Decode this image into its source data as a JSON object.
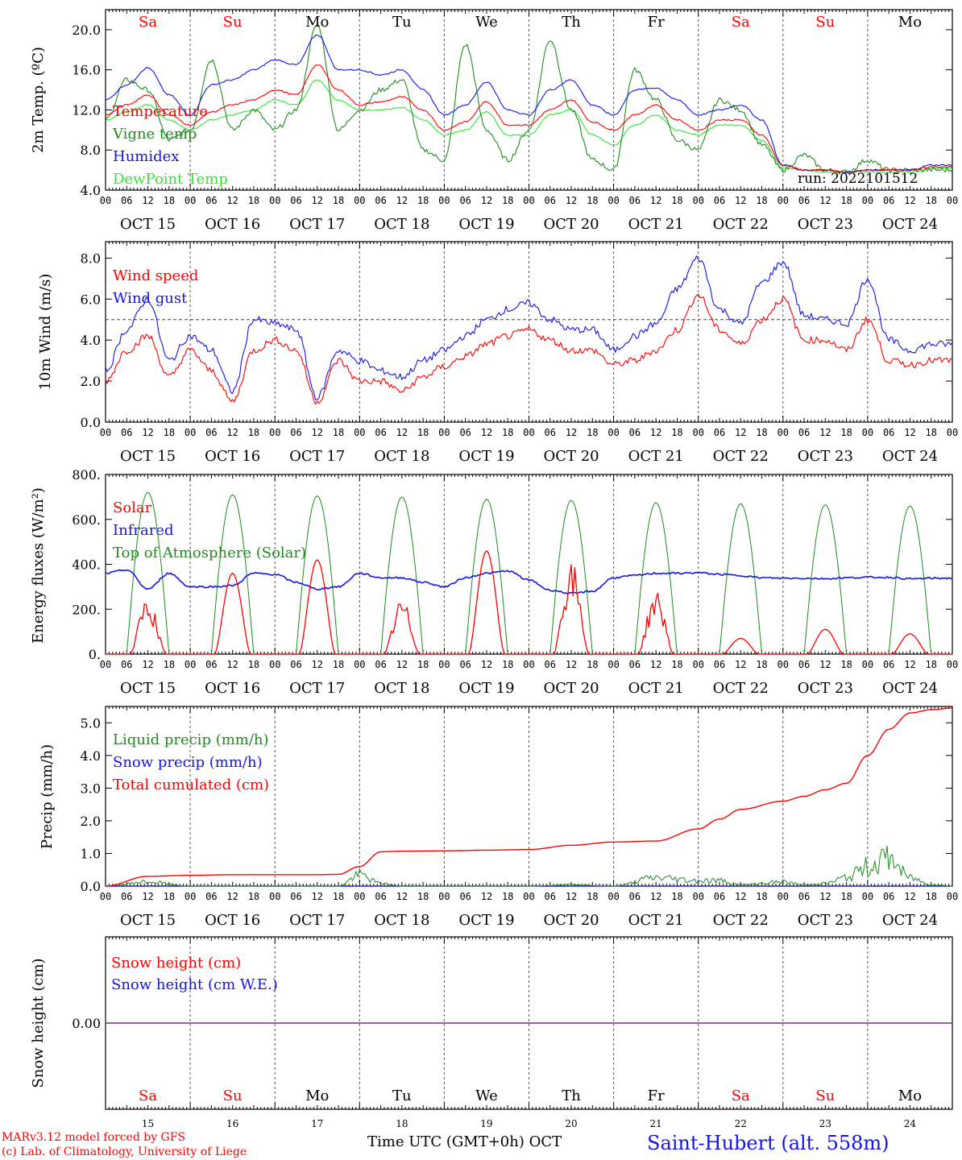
{
  "days": {
    "top_names": [
      "Sa",
      "Su",
      "Mo",
      "Tu",
      "We",
      "Th",
      "Fr",
      "Sa",
      "Su",
      "Mo"
    ],
    "name_colors": [
      "#ff0000",
      "#ff0000",
      "#000000",
      "#000000",
      "#000000",
      "#000000",
      "#000000",
      "#ff0000",
      "#ff0000",
      "#000000"
    ],
    "date_labels": [
      "OCT 15",
      "OCT 16",
      "OCT 17",
      "OCT 18",
      "OCT 19",
      "OCT 20",
      "OCT 21",
      "OCT 22",
      "OCT 23",
      "OCT 24"
    ],
    "hour_ticks": [
      "00",
      "06",
      "12",
      "18"
    ],
    "final_tick": "00",
    "day_numbers": [
      "15",
      "16",
      "17",
      "18",
      "19",
      "20",
      "21",
      "22",
      "23",
      "24"
    ]
  },
  "colors": {
    "red": "#ff0000",
    "green": "#1e8c1e",
    "blue": "#1414e6",
    "light_green": "#32e632",
    "purple": "#7a2a8a",
    "black": "#000000"
  },
  "footer": {
    "model_line1": "MARv3.12 model forced by GFS",
    "model_line2": "(c) Lab. of Climatology, University of Liege",
    "time_label": "Time UTC (GMT+0h) OCT",
    "station": "Saint-Hubert (alt. 558m)"
  },
  "chart_data": [
    {
      "type": "line",
      "ylabel": "2m Temp. (ºC)",
      "ylim": [
        4,
        22
      ],
      "yticks": [
        "4.0",
        "8.0",
        "12.0",
        "16.0",
        "20.0"
      ],
      "ytick_values": [
        4,
        8,
        12,
        16,
        20
      ],
      "annotation": "run: 2022101512",
      "x_hours": [
        0,
        6,
        12,
        18,
        24,
        30,
        36,
        42,
        48,
        54,
        60,
        66,
        72,
        78,
        84,
        90,
        96,
        102,
        108,
        114,
        120,
        126,
        132,
        138,
        144,
        150,
        156,
        162,
        168,
        174,
        180,
        186,
        192,
        198,
        204,
        210,
        216,
        222,
        228,
        234
      ],
      "series": [
        {
          "name": "Temperature",
          "color": "red",
          "values": [
            11.5,
            12.5,
            13.5,
            11.5,
            10.5,
            11.8,
            12.5,
            13.0,
            14.0,
            13.5,
            16.5,
            14.0,
            12.5,
            12.8,
            13.3,
            12.0,
            10.0,
            10.8,
            12.8,
            10.5,
            10.5,
            12.0,
            13.0,
            10.8,
            10.0,
            11.5,
            12.5,
            11.0,
            10.0,
            11.0,
            11.0,
            9.5,
            6.5,
            6.0,
            6.0,
            5.8,
            6.0,
            6.0,
            6.0,
            6.3
          ]
        },
        {
          "name": "Vigne temp",
          "color": "green",
          "values": [
            11.0,
            15.0,
            14.0,
            9.0,
            10.0,
            17.0,
            10.0,
            12.0,
            10.0,
            12.0,
            20.5,
            10.0,
            12.0,
            14.0,
            15.0,
            8.0,
            7.0,
            18.5,
            10.0,
            7.0,
            10.0,
            19.0,
            12.0,
            7.0,
            6.0,
            16.0,
            13.0,
            9.0,
            8.0,
            13.0,
            12.0,
            8.5,
            6.0,
            7.5,
            6.0,
            5.8,
            7.0,
            6.0,
            6.0,
            6.0
          ]
        },
        {
          "name": "Humidex",
          "color": "blue",
          "values": [
            13.0,
            14.5,
            16.2,
            13.5,
            11.5,
            14.5,
            15.0,
            16.0,
            17.0,
            16.5,
            19.5,
            16.0,
            16.0,
            15.5,
            16.0,
            14.0,
            11.5,
            12.5,
            14.8,
            12.0,
            11.5,
            14.0,
            15.0,
            12.5,
            11.5,
            14.0,
            14.2,
            13.0,
            11.5,
            12.0,
            12.5,
            11.0,
            6.5,
            6.0,
            6.0,
            5.8,
            6.0,
            6.0,
            6.0,
            6.5
          ]
        },
        {
          "name": "DewPoint Temp",
          "color": "light_green",
          "values": [
            11.0,
            11.8,
            12.5,
            11.0,
            10.0,
            11.0,
            11.5,
            12.0,
            13.0,
            12.5,
            15.0,
            13.0,
            12.0,
            12.0,
            12.2,
            11.0,
            9.5,
            10.0,
            11.8,
            9.5,
            9.5,
            11.5,
            12.0,
            9.5,
            8.5,
            10.5,
            11.5,
            10.0,
            9.5,
            10.5,
            10.5,
            9.0,
            6.2,
            6.0,
            5.8,
            5.8,
            5.8,
            5.8,
            5.8,
            6.2
          ]
        }
      ]
    },
    {
      "type": "line",
      "ylabel": "10m Wind (m/s)",
      "ylim": [
        0,
        8.8
      ],
      "yticks": [
        "0.0",
        "2.0",
        "4.0",
        "6.0",
        "8.0"
      ],
      "ytick_values": [
        0,
        2,
        4,
        6,
        8
      ],
      "reference_line": 5.0,
      "x_hours": [
        0,
        6,
        12,
        18,
        24,
        30,
        36,
        42,
        48,
        54,
        60,
        66,
        72,
        78,
        84,
        90,
        96,
        102,
        108,
        114,
        120,
        126,
        132,
        138,
        144,
        150,
        156,
        162,
        168,
        174,
        180,
        186,
        192,
        198,
        204,
        210,
        216,
        222,
        228,
        234
      ],
      "series": [
        {
          "name": "Wind speed",
          "color": "red",
          "values": [
            2.0,
            3.5,
            4.2,
            2.2,
            3.5,
            2.5,
            1.0,
            3.5,
            4.0,
            3.5,
            1.0,
            3.0,
            2.0,
            2.0,
            1.5,
            2.2,
            2.7,
            3.2,
            3.8,
            4.2,
            4.5,
            4.0,
            3.5,
            3.5,
            2.8,
            3.0,
            3.5,
            4.5,
            6.2,
            4.5,
            3.8,
            5.0,
            6.0,
            4.0,
            4.0,
            3.5,
            5.0,
            3.0,
            2.8,
            3.0
          ]
        },
        {
          "name": "Wind gust",
          "color": "blue",
          "values": [
            2.5,
            4.5,
            6.0,
            3.0,
            4.2,
            3.5,
            1.5,
            5.0,
            4.8,
            4.5,
            1.2,
            3.5,
            3.0,
            2.5,
            2.2,
            3.0,
            3.5,
            4.2,
            5.0,
            5.5,
            5.8,
            5.0,
            4.5,
            4.5,
            3.5,
            4.2,
            4.8,
            6.5,
            8.0,
            5.5,
            4.8,
            6.8,
            7.8,
            5.2,
            5.0,
            4.8,
            7.0,
            4.0,
            3.5,
            3.8
          ]
        }
      ]
    },
    {
      "type": "line",
      "ylabel": "Energy fluxes (W/m²)",
      "ylim": [
        0,
        800
      ],
      "yticks": [
        "0.",
        "200.",
        "400.",
        "600.",
        "800."
      ],
      "ytick_values": [
        0,
        200,
        400,
        600,
        800
      ],
      "toa_peaks": [
        720,
        710,
        705,
        700,
        690,
        685,
        675,
        670,
        665,
        660
      ],
      "solar_peaks": [
        260,
        360,
        420,
        250,
        460,
        420,
        290,
        70,
        110,
        90
      ],
      "infrared_values": [
        360,
        375,
        290,
        360,
        300,
        300,
        305,
        360,
        355,
        320,
        290,
        300,
        360,
        340,
        340,
        320,
        300,
        340,
        360,
        370,
        330,
        285,
        270,
        280,
        340,
        350,
        360,
        360,
        362,
        355,
        350,
        340,
        338,
        338,
        336,
        340,
        342,
        342,
        335,
        338
      ],
      "series": [
        {
          "name": "Solar",
          "color": "red"
        },
        {
          "name": "Infrared",
          "color": "blue"
        },
        {
          "name": "Top of Atmosphere (Solar)",
          "color": "green"
        }
      ]
    },
    {
      "type": "line",
      "ylabel": "Precip (mm/h)",
      "ylim": [
        0,
        5.5
      ],
      "yticks": [
        "0.0",
        "1.0",
        "2.0",
        "3.0",
        "4.0",
        "5.0"
      ],
      "ytick_values": [
        0,
        1,
        2,
        3,
        4,
        5
      ],
      "x_hours": [
        0,
        12,
        24,
        36,
        48,
        60,
        66,
        72,
        78,
        84,
        96,
        108,
        120,
        132,
        144,
        156,
        168,
        174,
        180,
        192,
        198,
        204,
        210,
        216,
        222,
        228,
        234,
        240
      ],
      "series": [
        {
          "name": "Liquid precip (mm/h)",
          "color": "green",
          "values": [
            0.0,
            0.15,
            0.0,
            0.0,
            0.0,
            0.0,
            0.0,
            0.4,
            0.1,
            0.0,
            0.0,
            0.0,
            0.0,
            0.05,
            0.0,
            0.3,
            0.2,
            0.2,
            0.05,
            0.15,
            0.05,
            0.1,
            0.3,
            0.7,
            1.0,
            0.3,
            0.05,
            0.0
          ]
        },
        {
          "name": "Snow precip (mm/h)",
          "color": "blue",
          "values": [
            0.0,
            0.0,
            0.0,
            0.0,
            0.0,
            0.0,
            0.0,
            0.0,
            0.0,
            0.0,
            0.0,
            0.0,
            0.0,
            0.0,
            0.0,
            0.0,
            0.0,
            0.0,
            0.0,
            0.0,
            0.0,
            0.0,
            0.0,
            0.0,
            0.0,
            0.0,
            0.0,
            0.0
          ]
        },
        {
          "name": "Total cumulated (cm)",
          "color": "red",
          "values": [
            0.0,
            0.3,
            0.33,
            0.35,
            0.35,
            0.35,
            0.36,
            0.6,
            1.05,
            1.07,
            1.08,
            1.1,
            1.12,
            1.25,
            1.35,
            1.38,
            1.75,
            2.05,
            2.35,
            2.6,
            2.75,
            2.95,
            3.15,
            4.0,
            4.8,
            5.3,
            5.4,
            5.45
          ]
        }
      ]
    },
    {
      "type": "line",
      "ylabel": "Snow height (cm)",
      "yticks": [
        "0.00"
      ],
      "series": [
        {
          "name": "Snow height (cm)",
          "color": "red",
          "value": 0.0
        },
        {
          "name": "Snow height (cm W.E.)",
          "color": "blue",
          "value": 0.0
        }
      ]
    }
  ]
}
